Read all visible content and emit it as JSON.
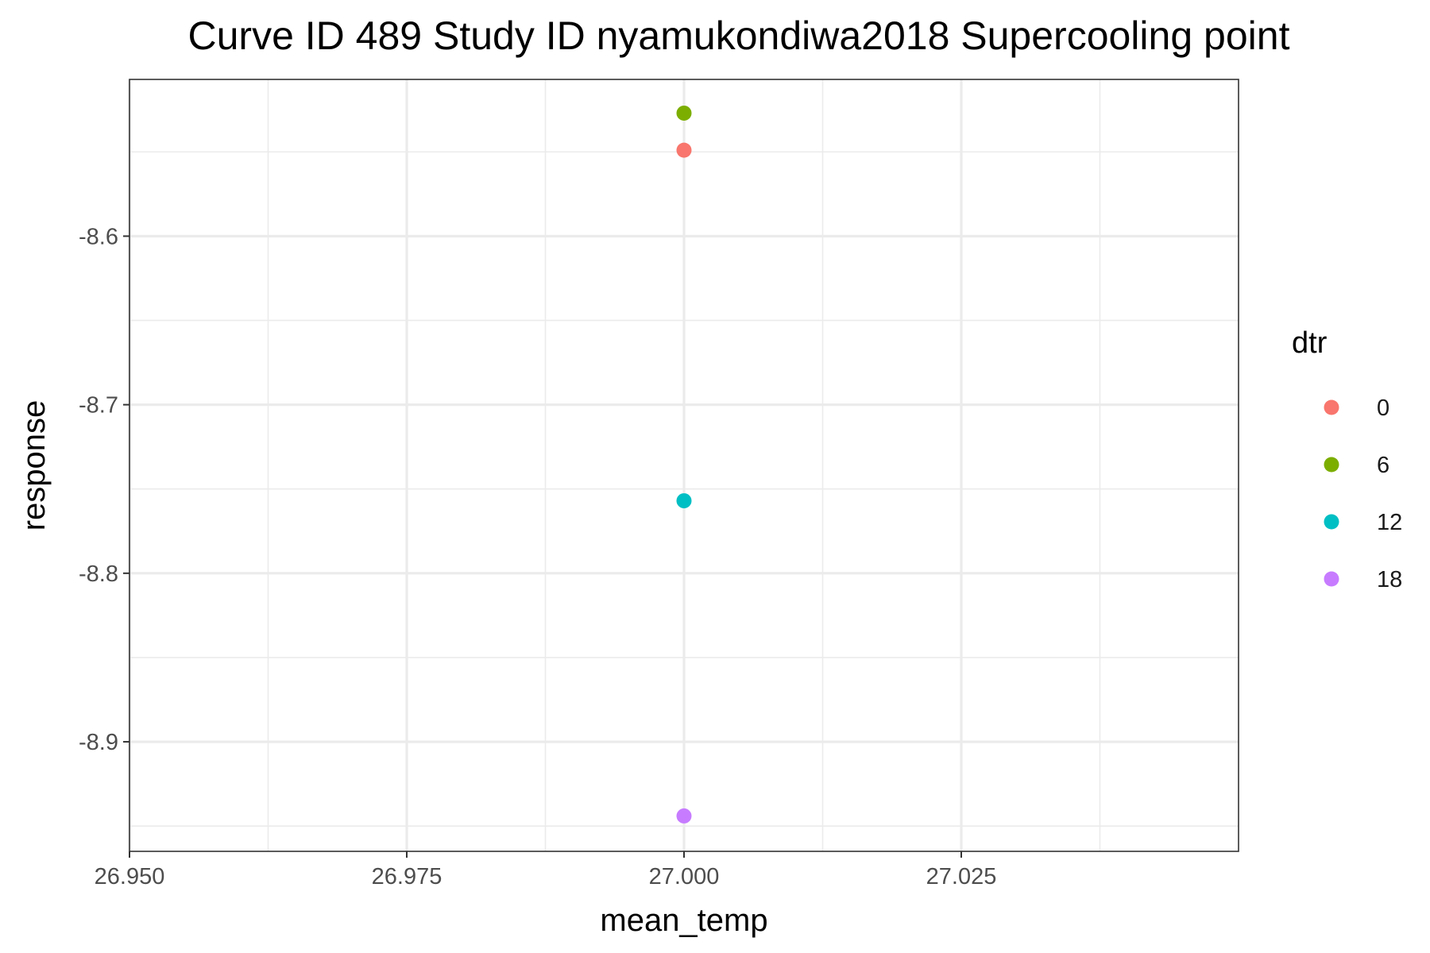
{
  "chart_data": {
    "type": "scatter",
    "title": "Curve ID 489 Study ID nyamukondiwa2018 Supercooling point",
    "xlabel": "mean_temp",
    "ylabel": "response",
    "xlim": [
      26.95,
      27.05
    ],
    "ylim": [
      -8.965,
      -8.507
    ],
    "x_ticks": [
      26.95,
      26.975,
      27.0,
      27.025
    ],
    "x_tick_labels": [
      "26.950",
      "26.975",
      "27.000",
      "27.025"
    ],
    "y_ticks": [
      -8.6,
      -8.7,
      -8.8,
      -8.9
    ],
    "y_tick_labels": [
      "-8.6",
      "-8.7",
      "-8.8",
      "-8.9"
    ],
    "grid": true,
    "legend": {
      "title": "dtr",
      "placement": "right",
      "entries": [
        {
          "label": "0",
          "color": "#F8766D"
        },
        {
          "label": "6",
          "color": "#7CAE00"
        },
        {
          "label": "12",
          "color": "#00BFC4"
        },
        {
          "label": "18",
          "color": "#C77CFF"
        }
      ]
    },
    "series": [
      {
        "name": "0",
        "color": "#F8766D",
        "points": [
          {
            "x": 27.0,
            "y": -8.549
          }
        ]
      },
      {
        "name": "6",
        "color": "#7CAE00",
        "points": [
          {
            "x": 27.0,
            "y": -8.527
          }
        ]
      },
      {
        "name": "12",
        "color": "#00BFC4",
        "points": [
          {
            "x": 27.0,
            "y": -8.757
          }
        ]
      },
      {
        "name": "18",
        "color": "#C77CFF",
        "points": [
          {
            "x": 27.0,
            "y": -8.944
          }
        ]
      }
    ]
  }
}
